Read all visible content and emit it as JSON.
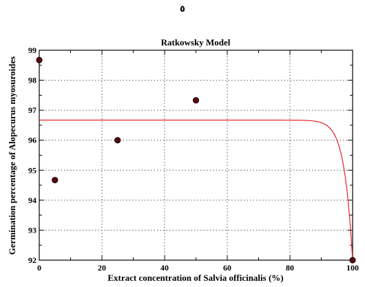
{
  "page_mark": "٥",
  "chart_data": {
    "type": "scatter",
    "title": "Ratkowsky Model",
    "xlabel": "Extract concentration of Salvia officinalis (%)",
    "ylabel": "Germination percentage of Alopecurus myosuroides",
    "xlim": [
      0,
      100
    ],
    "ylim": [
      92,
      99
    ],
    "xticks": [
      0,
      20,
      40,
      60,
      80,
      100
    ],
    "yticks": [
      92,
      93,
      94,
      95,
      96,
      97,
      98,
      99
    ],
    "grid": true,
    "points": {
      "x": [
        0,
        5,
        25,
        50,
        100
      ],
      "y": [
        98.67,
        94.67,
        96.0,
        97.33,
        92.0
      ],
      "color": "#5a0a0a"
    },
    "fit_curve": {
      "color": "#e8202a",
      "plateau": 96.67,
      "x_end": 100,
      "y_end": 92.0
    }
  }
}
